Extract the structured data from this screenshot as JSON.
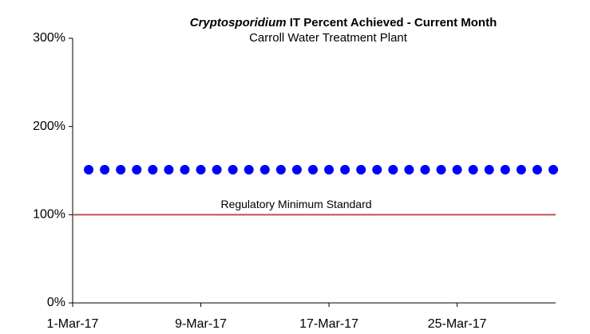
{
  "chart_data": {
    "type": "scatter",
    "title_italic": "Cryptosporidium",
    "title": "IT Percent Achieved - Current Month",
    "subtitle": "Carroll Water Treatment Plant",
    "x": [
      "2017-03-02",
      "2017-03-03",
      "2017-03-04",
      "2017-03-05",
      "2017-03-06",
      "2017-03-07",
      "2017-03-08",
      "2017-03-09",
      "2017-03-10",
      "2017-03-11",
      "2017-03-12",
      "2017-03-13",
      "2017-03-14",
      "2017-03-15",
      "2017-03-16",
      "2017-03-17",
      "2017-03-18",
      "2017-03-19",
      "2017-03-20",
      "2017-03-21",
      "2017-03-22",
      "2017-03-23",
      "2017-03-24",
      "2017-03-25",
      "2017-03-26",
      "2017-03-27",
      "2017-03-28",
      "2017-03-29",
      "2017-03-30",
      "2017-03-31"
    ],
    "series": [
      {
        "name": null,
        "color": "#0000ff",
        "values": [
          151,
          151,
          151,
          151,
          151,
          151,
          151,
          151,
          151,
          151,
          151,
          151,
          151,
          151,
          151,
          151,
          151,
          151,
          151,
          151,
          151,
          151,
          151,
          151,
          151,
          151,
          151,
          151,
          151,
          151
        ]
      }
    ],
    "xlim": [
      "2017-03-01",
      "2017-03-31"
    ],
    "xticks": [
      {
        "value": "2017-03-01",
        "label": "1-Mar-17"
      },
      {
        "value": "2017-03-09",
        "label": "9-Mar-17"
      },
      {
        "value": "2017-03-17",
        "label": "17-Mar-17"
      },
      {
        "value": "2017-03-25",
        "label": "25-Mar-17"
      }
    ],
    "ylim": [
      0,
      300
    ],
    "yticks": [
      {
        "value": 0,
        "label": "0%"
      },
      {
        "value": 100,
        "label": "100%"
      },
      {
        "value": 200,
        "label": "200%"
      },
      {
        "value": 300,
        "label": "300%"
      }
    ],
    "grid": false,
    "reference_line": {
      "value": 100,
      "label": "Regulatory Minimum Standard",
      "color": "#c0504d"
    }
  }
}
